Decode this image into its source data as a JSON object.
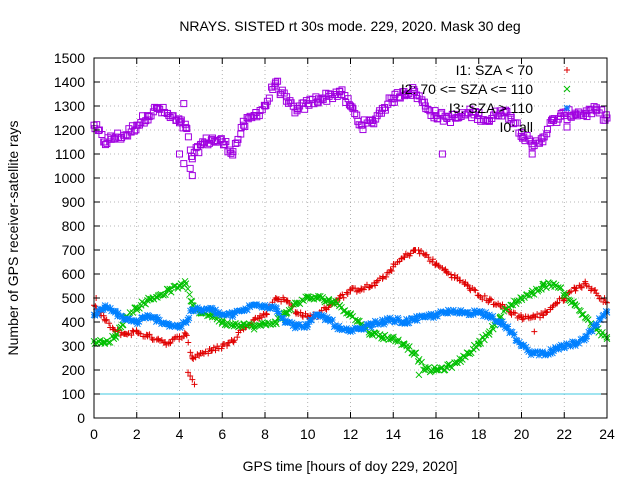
{
  "chart_data": {
    "type": "scatter",
    "title": "NRAYS. SISTED rt 30s mode. 229, 2020. Mask 30 deg",
    "xlabel": "GPS time [hours of doy 229, 2020]",
    "ylabel": "Number of GPS receiver-satellite rays",
    "xlim": [
      0,
      24
    ],
    "ylim": [
      0,
      1500
    ],
    "xticks": [
      0,
      2,
      4,
      6,
      8,
      10,
      12,
      14,
      16,
      18,
      20,
      22,
      24
    ],
    "yticks": [
      0,
      100,
      200,
      300,
      400,
      500,
      600,
      700,
      800,
      900,
      1000,
      1100,
      1200,
      1300,
      1400,
      1500
    ],
    "grid": true,
    "legend_position": "top-right",
    "reference_line": {
      "y": 100,
      "color": "#40c8e0"
    },
    "series": [
      {
        "name": "I1: SZA < 70",
        "marker": "+",
        "color": "#e00000",
        "x": [
          0.0,
          0.5,
          1.0,
          1.5,
          2.0,
          2.5,
          3.0,
          3.5,
          4.0,
          4.3,
          4.6,
          5.0,
          5.5,
          6.0,
          6.5,
          7.0,
          7.5,
          8.0,
          8.5,
          9.0,
          9.5,
          10.0,
          10.5,
          11.0,
          11.5,
          12.0,
          12.5,
          13.0,
          13.5,
          14.0,
          14.5,
          15.0,
          15.5,
          16.0,
          16.5,
          17.0,
          17.5,
          18.0,
          18.5,
          19.0,
          19.5,
          20.0,
          20.5,
          21.0,
          21.5,
          22.0,
          22.5,
          23.0,
          23.5,
          24.0
        ],
        "values": [
          470,
          410,
          360,
          350,
          360,
          340,
          330,
          310,
          340,
          350,
          250,
          270,
          280,
          300,
          320,
          380,
          410,
          430,
          500,
          490,
          440,
          420,
          430,
          470,
          500,
          530,
          540,
          550,
          580,
          630,
          670,
          700,
          680,
          640,
          610,
          580,
          550,
          510,
          490,
          470,
          440,
          420,
          420,
          430,
          470,
          500,
          540,
          560,
          520,
          480
        ]
      },
      {
        "name": "I2: 70 <= SZA <= 110",
        "marker": "x",
        "color": "#00c000",
        "x": [
          0.0,
          0.5,
          1.0,
          1.5,
          2.0,
          2.5,
          3.0,
          3.5,
          4.0,
          4.3,
          4.6,
          5.0,
          5.5,
          6.0,
          6.5,
          7.0,
          7.5,
          8.0,
          8.5,
          9.0,
          9.5,
          10.0,
          10.5,
          11.0,
          11.5,
          12.0,
          12.5,
          13.0,
          13.5,
          14.0,
          14.5,
          15.0,
          15.5,
          16.0,
          16.5,
          17.0,
          17.5,
          18.0,
          18.5,
          19.0,
          19.5,
          20.0,
          20.5,
          21.0,
          21.5,
          22.0,
          22.5,
          23.0,
          23.5,
          24.0
        ],
        "values": [
          320,
          310,
          340,
          420,
          460,
          490,
          510,
          530,
          550,
          560,
          470,
          440,
          430,
          400,
          390,
          390,
          380,
          390,
          400,
          440,
          480,
          500,
          500,
          490,
          470,
          430,
          390,
          350,
          340,
          330,
          310,
          270,
          200,
          200,
          210,
          230,
          270,
          310,
          360,
          420,
          470,
          500,
          520,
          550,
          560,
          520,
          470,
          420,
          370,
          330
        ]
      },
      {
        "name": "I3: SZA > 110",
        "marker": "star",
        "color": "#0080ff",
        "x": [
          0.0,
          0.5,
          1.0,
          1.5,
          2.0,
          2.5,
          3.0,
          3.5,
          4.0,
          4.3,
          4.6,
          5.0,
          5.5,
          6.0,
          6.5,
          7.0,
          7.5,
          8.0,
          8.5,
          9.0,
          9.5,
          10.0,
          10.5,
          11.0,
          11.5,
          12.0,
          12.5,
          13.0,
          13.5,
          14.0,
          14.5,
          15.0,
          15.5,
          16.0,
          16.5,
          17.0,
          17.5,
          18.0,
          18.5,
          19.0,
          19.5,
          20.0,
          20.5,
          21.0,
          21.5,
          22.0,
          22.5,
          23.0,
          23.5,
          24.0
        ],
        "values": [
          430,
          460,
          440,
          410,
          400,
          420,
          410,
          390,
          380,
          400,
          450,
          450,
          450,
          430,
          430,
          450,
          470,
          470,
          460,
          400,
          380,
          390,
          430,
          410,
          370,
          360,
          370,
          390,
          400,
          410,
          400,
          410,
          420,
          430,
          440,
          440,
          440,
          440,
          430,
          400,
          360,
          300,
          270,
          270,
          280,
          300,
          310,
          330,
          390,
          440
        ]
      },
      {
        "name": "I0: all",
        "marker": "open-square",
        "color": "#a000e0",
        "x": [
          0.0,
          0.5,
          1.0,
          1.5,
          2.0,
          2.5,
          3.0,
          3.5,
          4.0,
          4.3,
          4.6,
          5.0,
          5.5,
          6.0,
          6.5,
          7.0,
          7.5,
          8.0,
          8.5,
          9.0,
          9.5,
          10.0,
          10.5,
          11.0,
          11.5,
          12.0,
          12.5,
          13.0,
          13.5,
          14.0,
          14.5,
          15.0,
          15.5,
          16.0,
          16.5,
          17.0,
          17.5,
          18.0,
          18.5,
          19.0,
          19.5,
          20.0,
          20.5,
          21.0,
          21.5,
          22.0,
          22.5,
          23.0,
          23.5,
          24.0
        ],
        "values": [
          1220,
          1150,
          1170,
          1180,
          1220,
          1260,
          1290,
          1260,
          1230,
          1210,
          1080,
          1140,
          1160,
          1150,
          1110,
          1220,
          1260,
          1300,
          1400,
          1320,
          1280,
          1310,
          1330,
          1340,
          1360,
          1300,
          1220,
          1230,
          1290,
          1330,
          1360,
          1360,
          1300,
          1260,
          1250,
          1250,
          1270,
          1260,
          1240,
          1280,
          1260,
          1190,
          1130,
          1170,
          1240,
          1260,
          1270,
          1270,
          1280,
          1250
        ]
      }
    ],
    "outliers": [
      {
        "series": "I1: SZA < 70",
        "x": [
          4.4,
          4.5,
          4.6,
          4.7,
          20.6,
          0.1
        ],
        "values": [
          190,
          175,
          160,
          140,
          360,
          500
        ]
      },
      {
        "series": "I2: 70 <= SZA <= 110",
        "x": [
          15.2
        ],
        "values": [
          180
        ]
      },
      {
        "series": "I0: all",
        "x": [
          4.0,
          4.2,
          4.5,
          4.6,
          16.3,
          20.5,
          4.2
        ],
        "values": [
          1100,
          1060,
          1040,
          1010,
          1100,
          1100,
          1310
        ]
      }
    ]
  }
}
